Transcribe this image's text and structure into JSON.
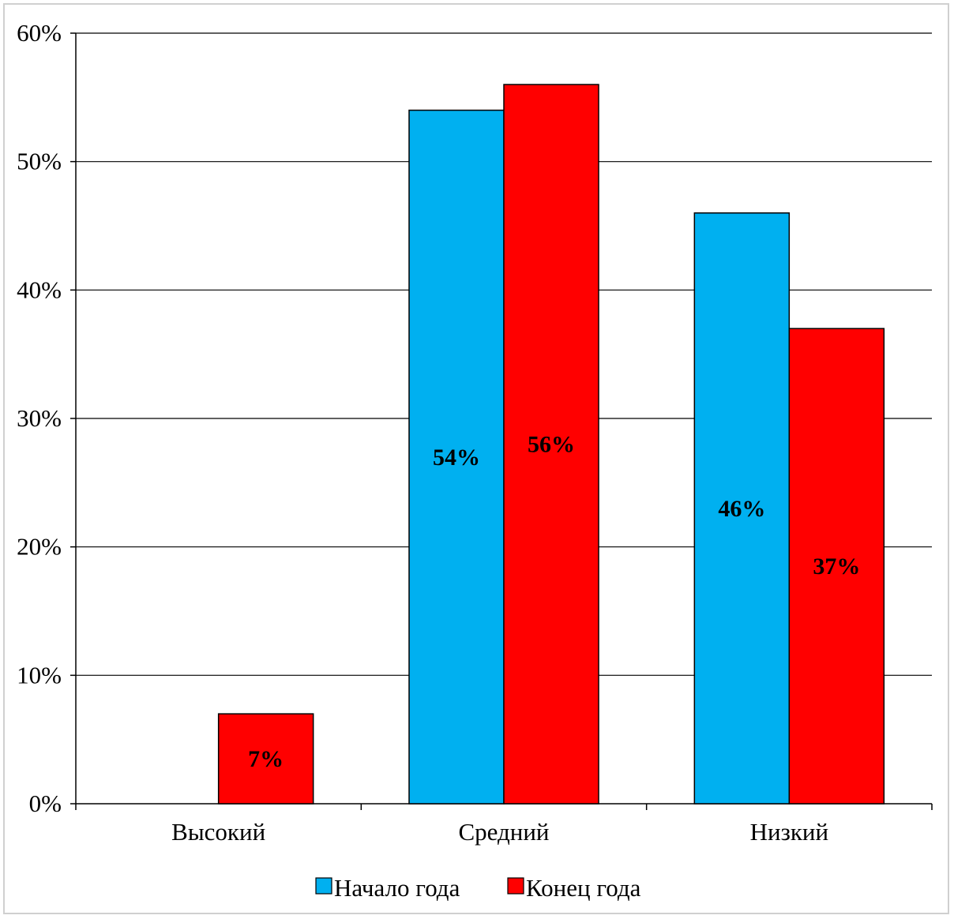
{
  "chart_data": {
    "type": "bar",
    "categories": [
      "Высокий",
      "Средний",
      "Низкий"
    ],
    "series": [
      {
        "name": "Начало года",
        "values": [
          0,
          54,
          46
        ],
        "color": "#00b0f0"
      },
      {
        "name": "Конец года",
        "values": [
          7,
          56,
          37
        ],
        "color": "#ff0000"
      }
    ],
    "data_labels": [
      [
        "",
        "54%",
        "46%"
      ],
      [
        "7%",
        "56%",
        "37%"
      ]
    ],
    "y_ticks": [
      "0%",
      "10%",
      "20%",
      "30%",
      "40%",
      "50%",
      "60%"
    ],
    "ylim": [
      0,
      60
    ],
    "grid": true,
    "legend_position": "bottom"
  }
}
